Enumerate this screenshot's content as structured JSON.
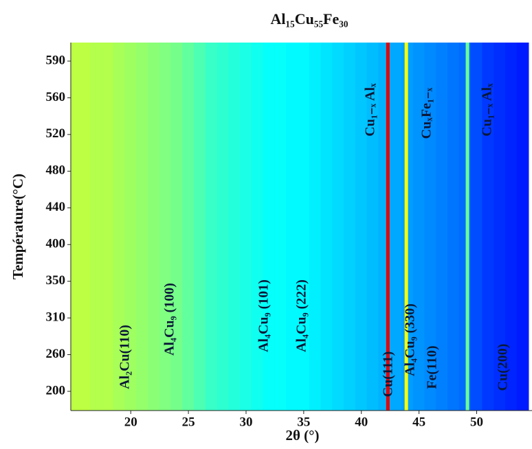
{
  "chart_data": {
    "type": "heatmap",
    "title": "Al₁₅Cu₅₅Fe₃₀",
    "x_label": "2θ (°)",
    "y_label": "Température(°C)",
    "colormap": "jet",
    "xlim": [
      14.8,
      54.8
    ],
    "xticks": [
      20,
      25,
      30,
      35,
      40,
      45,
      50
    ],
    "yticks": [
      200,
      260,
      310,
      350,
      400,
      440,
      480,
      520,
      560,
      590
    ],
    "x": [
      15,
      16,
      17,
      18,
      19,
      20,
      21,
      22,
      23,
      24,
      25,
      26,
      27,
      28,
      29,
      30,
      31,
      32,
      33,
      34,
      35,
      36,
      37,
      38,
      39,
      40,
      41,
      42,
      43,
      44,
      45,
      46,
      47,
      48,
      49,
      50,
      51,
      52,
      53,
      54
    ],
    "intensity": [
      56,
      56,
      55,
      55,
      54,
      53,
      52,
      51,
      50,
      49,
      47,
      45,
      43,
      42,
      41,
      40,
      39,
      38,
      38,
      37,
      37,
      36,
      35,
      34,
      33,
      32,
      31,
      30,
      29,
      28,
      27,
      26,
      25,
      24,
      23,
      20,
      18,
      17,
      16,
      15
    ],
    "peaks": {
      "x": [
        42.3,
        43.9,
        49.2
      ],
      "intensity": [
        90,
        62,
        48
      ]
    },
    "annotations": [
      "Al₂Cu(110)",
      "Al₄Cu₉ (100)",
      "Al₄Cu₉ (101)",
      "Al₄Cu₉ (222)",
      "Cu(111)",
      "Al₄Cu₉ (330)",
      "Fe(110)",
      "Cu(200)",
      "Cu₁₋ₓ Alₓ",
      "CuₓFe₁₋ₓ",
      "Cu₁₋ₓ Alₓ"
    ]
  }
}
